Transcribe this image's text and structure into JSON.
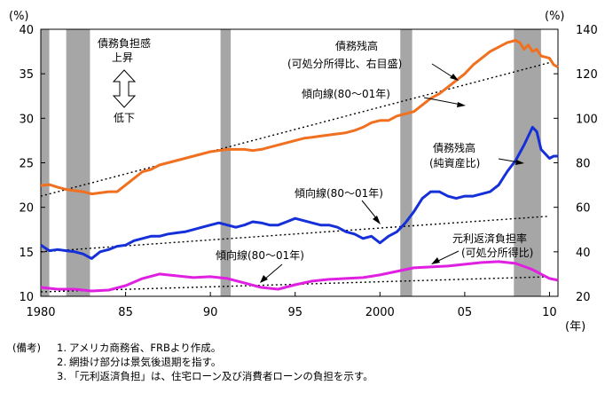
{
  "chart_data": {
    "type": "line",
    "left_axis": {
      "unit": "(%)",
      "min": 10,
      "max": 40,
      "ticks": [
        "10",
        "15",
        "20",
        "25",
        "30",
        "35",
        "40"
      ]
    },
    "right_axis": {
      "unit": "(%)",
      "min": 20,
      "max": 140,
      "ticks": [
        "20",
        "40",
        "60",
        "80",
        "100",
        "120",
        "140"
      ]
    },
    "x_axis": {
      "min": 1980,
      "max": 2010.5,
      "unit": "(年)",
      "ticks": [
        {
          "x": 1980,
          "label": "1980"
        },
        {
          "x": 1985,
          "label": "85"
        },
        {
          "x": 1990,
          "label": "90"
        },
        {
          "x": 1995,
          "label": "95"
        },
        {
          "x": 2000,
          "label": "2000"
        },
        {
          "x": 2005,
          "label": "05"
        },
        {
          "x": 2010,
          "label": "10"
        }
      ]
    },
    "recessions": [
      [
        1980.0,
        1980.5
      ],
      [
        1981.5,
        1982.9
      ],
      [
        1990.6,
        1991.2
      ],
      [
        2001.2,
        2001.9
      ],
      [
        2007.9,
        2009.5
      ]
    ],
    "series": [
      {
        "name": "債務残高(可処分所得比、右目盛)",
        "axis": "right",
        "color": "#F07020",
        "points": [
          [
            1980,
            69.8
          ],
          [
            1980.5,
            70.2
          ],
          [
            1981,
            69
          ],
          [
            1981.5,
            68
          ],
          [
            1982,
            67.5
          ],
          [
            1982.5,
            67
          ],
          [
            1983,
            66
          ],
          [
            1983.5,
            66.5
          ],
          [
            1984,
            67
          ],
          [
            1984.5,
            67
          ],
          [
            1985,
            70
          ],
          [
            1985.5,
            73
          ],
          [
            1986,
            76
          ],
          [
            1986.5,
            77
          ],
          [
            1987,
            79
          ],
          [
            1987.5,
            80
          ],
          [
            1988,
            81
          ],
          [
            1988.5,
            82
          ],
          [
            1989,
            83
          ],
          [
            1989.5,
            84
          ],
          [
            1990,
            85
          ],
          [
            1990.5,
            85.5
          ],
          [
            1991,
            86
          ],
          [
            1991.5,
            86
          ],
          [
            1992,
            86
          ],
          [
            1992.5,
            85.5
          ],
          [
            1993,
            86
          ],
          [
            1993.5,
            87
          ],
          [
            1994,
            88
          ],
          [
            1994.5,
            89
          ],
          [
            1995,
            90
          ],
          [
            1995.5,
            91
          ],
          [
            1996,
            91.5
          ],
          [
            1996.5,
            92
          ],
          [
            1997,
            92.5
          ],
          [
            1997.5,
            93
          ],
          [
            1998,
            93.5
          ],
          [
            1998.5,
            94.5
          ],
          [
            1999,
            96
          ],
          [
            1999.5,
            98
          ],
          [
            2000,
            99
          ],
          [
            2000.5,
            99
          ],
          [
            2001,
            101
          ],
          [
            2001.5,
            102
          ],
          [
            2002,
            103
          ],
          [
            2002.5,
            106
          ],
          [
            2003,
            109
          ],
          [
            2003.5,
            111
          ],
          [
            2004,
            114
          ],
          [
            2004.5,
            117
          ],
          [
            2005,
            120
          ],
          [
            2005.5,
            124
          ],
          [
            2006,
            127
          ],
          [
            2006.5,
            130
          ],
          [
            2007,
            132
          ],
          [
            2007.5,
            134
          ],
          [
            2008,
            135
          ],
          [
            2008.25,
            134
          ],
          [
            2008.5,
            131
          ],
          [
            2008.75,
            133
          ],
          [
            2009,
            130
          ],
          [
            2009.25,
            131
          ],
          [
            2009.5,
            128
          ],
          [
            2010,
            127
          ],
          [
            2010.25,
            124
          ],
          [
            2010.5,
            123
          ]
        ]
      },
      {
        "name": "債務残高(純資産比)",
        "axis": "right",
        "color": "#1530D8",
        "points": [
          [
            1980,
            43
          ],
          [
            1980.5,
            40.5
          ],
          [
            1981,
            41
          ],
          [
            1981.5,
            40.5
          ],
          [
            1982,
            40
          ],
          [
            1982.5,
            39
          ],
          [
            1983,
            37
          ],
          [
            1983.5,
            40
          ],
          [
            1984,
            41
          ],
          [
            1984.5,
            42.5
          ],
          [
            1985,
            43
          ],
          [
            1985.5,
            45
          ],
          [
            1986,
            46
          ],
          [
            1986.5,
            47
          ],
          [
            1987,
            47
          ],
          [
            1987.5,
            48
          ],
          [
            1988,
            48.5
          ],
          [
            1988.5,
            49
          ],
          [
            1989,
            50
          ],
          [
            1989.5,
            51
          ],
          [
            1990,
            52
          ],
          [
            1990.5,
            53
          ],
          [
            1991,
            52
          ],
          [
            1991.5,
            51
          ],
          [
            1992,
            52
          ],
          [
            1992.5,
            53.5
          ],
          [
            1993,
            53
          ],
          [
            1993.5,
            52
          ],
          [
            1994,
            52
          ],
          [
            1994.5,
            53.5
          ],
          [
            1995,
            55
          ],
          [
            1995.5,
            54
          ],
          [
            1996,
            53
          ],
          [
            1996.5,
            52
          ],
          [
            1997,
            52
          ],
          [
            1997.5,
            51
          ],
          [
            1998,
            49
          ],
          [
            1998.5,
            48
          ],
          [
            1999,
            46
          ],
          [
            1999.5,
            47
          ],
          [
            2000,
            44
          ],
          [
            2000.5,
            47
          ],
          [
            2001,
            49
          ],
          [
            2001.5,
            53
          ],
          [
            2002,
            58
          ],
          [
            2002.5,
            64
          ],
          [
            2003,
            67
          ],
          [
            2003.5,
            67
          ],
          [
            2004,
            65
          ],
          [
            2004.5,
            64
          ],
          [
            2005,
            65
          ],
          [
            2005.5,
            65
          ],
          [
            2006,
            66
          ],
          [
            2006.5,
            67
          ],
          [
            2007,
            70
          ],
          [
            2007.5,
            76
          ],
          [
            2008,
            81
          ],
          [
            2008.5,
            88
          ],
          [
            2009,
            96
          ],
          [
            2009.25,
            94
          ],
          [
            2009.5,
            86
          ],
          [
            2010,
            82
          ],
          [
            2010.25,
            83
          ],
          [
            2010.5,
            83
          ]
        ]
      },
      {
        "name": "元利返済負担率(可処分所得比)",
        "axis": "left",
        "color": "#E020E0",
        "points": [
          [
            1980,
            11.0
          ],
          [
            1981,
            10.8
          ],
          [
            1982,
            10.8
          ],
          [
            1983,
            10.6
          ],
          [
            1984,
            10.7
          ],
          [
            1985,
            11.2
          ],
          [
            1986,
            12.0
          ],
          [
            1987,
            12.5
          ],
          [
            1988,
            12.3
          ],
          [
            1989,
            12.1
          ],
          [
            1990,
            12.2
          ],
          [
            1991,
            12.0
          ],
          [
            1992,
            11.5
          ],
          [
            1993,
            11.0
          ],
          [
            1994,
            10.8
          ],
          [
            1995,
            11.3
          ],
          [
            1996,
            11.7
          ],
          [
            1997,
            11.9
          ],
          [
            1998,
            12.0
          ],
          [
            1999,
            12.1
          ],
          [
            2000,
            12.4
          ],
          [
            2001,
            12.8
          ],
          [
            2002,
            13.2
          ],
          [
            2003,
            13.3
          ],
          [
            2004,
            13.4
          ],
          [
            2005,
            13.6
          ],
          [
            2006,
            13.8
          ],
          [
            2007,
            13.9
          ],
          [
            2008,
            13.7
          ],
          [
            2009,
            13.0
          ],
          [
            2010,
            12.0
          ],
          [
            2010.5,
            11.8
          ]
        ]
      }
    ],
    "trendlines": [
      {
        "name": "傾向線(80〜01年)",
        "axis": "right",
        "from": [
          1980,
          65
        ],
        "to": [
          2010,
          125
        ]
      },
      {
        "name": "傾向線(80〜01年)",
        "axis": "right",
        "from": [
          1980,
          40
        ],
        "to": [
          2010,
          56
        ]
      },
      {
        "name": "傾向線(80〜01年)",
        "axis": "left",
        "from": [
          1980,
          10.5
        ],
        "to": [
          2010,
          12.2
        ]
      }
    ],
    "annotations": {
      "debt_income_label_1": "債務残高",
      "debt_income_label_2": "(可処分所得比、右目盛)",
      "trend_label_1": "傾向線(80〜01年)",
      "trend_label_2": "傾向線(80〜01年)",
      "trend_label_3": "傾向線(80〜01年)",
      "debt_networth_label_1": "債務残高",
      "debt_networth_label_2": "(純資産比)",
      "service_label_1": "元利返済負担率",
      "service_label_2": "(可処分所得比)",
      "burden_label_1": "債務負担感",
      "burden_label_2": "上昇",
      "burden_label_3": "低下"
    }
  },
  "notes": {
    "heading": "(備考)",
    "items": [
      {
        "num": "1.",
        "text": "アメリカ商務省、FRBより作成。"
      },
      {
        "num": "2.",
        "text": "網掛け部分は景気後退期を指す。"
      },
      {
        "num": "3.",
        "text": "「元利返済負担」は、住宅ローン及び消費者ローンの負担を示す。"
      }
    ]
  }
}
